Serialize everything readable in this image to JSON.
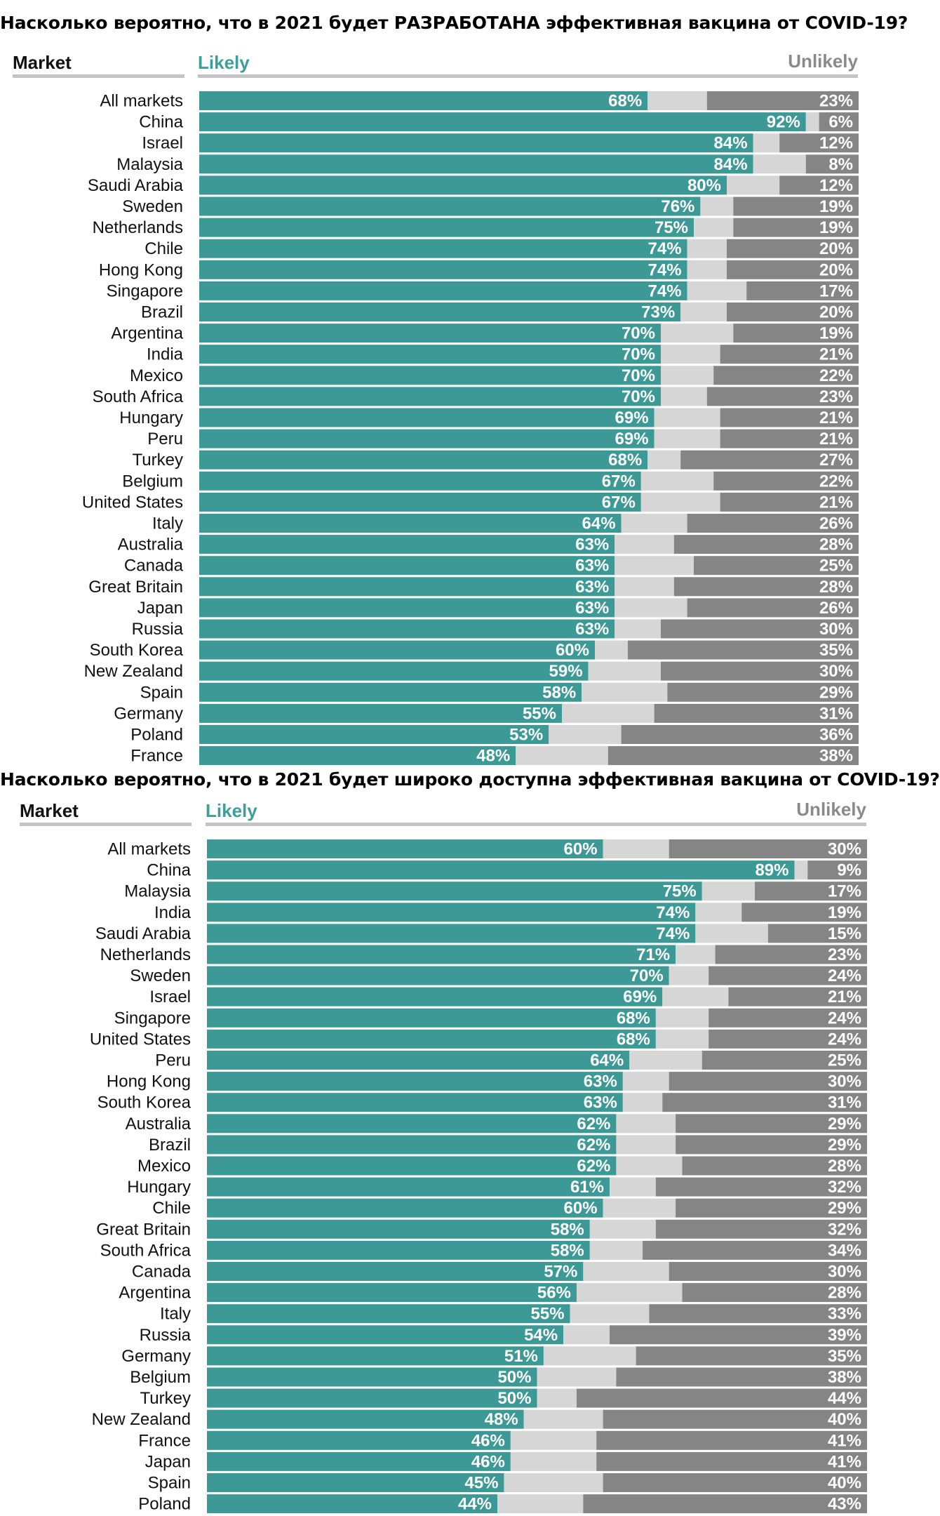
{
  "colors": {
    "likely": "#3d9995",
    "neutral": "#d6d6d6",
    "unlikely": "#858585",
    "likely_text": "#3f9e98",
    "unlikely_text": "#8a8a8a"
  },
  "chart_data": [
    {
      "type": "bar",
      "stacked": true,
      "orientation": "horizontal",
      "title": "Насколько вероятно, что в 2021 будет РАЗРАБОТАНА эффективная вакцина от COVID-19?",
      "category_header": "Market",
      "likely_header": "Likely",
      "unlikely_header": "Unlikely",
      "xlim": [
        0,
        100
      ],
      "categories": [
        "All markets",
        "China",
        "Israel",
        "Malaysia",
        "Saudi Arabia",
        "Sweden",
        "Netherlands",
        "Chile",
        "Hong Kong",
        "Singapore",
        "Brazil",
        "Argentina",
        "India",
        "Mexico",
        "South Africa",
        "Hungary",
        "Peru",
        "Turkey",
        "Belgium",
        "United States",
        "Italy",
        "Australia",
        "Canada",
        "Great Britain",
        "Japan",
        "Russia",
        "South Korea",
        "New Zealand",
        "Spain",
        "Germany",
        "Poland",
        "France"
      ],
      "series": [
        {
          "name": "Likely",
          "values": [
            68,
            92,
            84,
            84,
            80,
            76,
            75,
            74,
            74,
            74,
            73,
            70,
            70,
            70,
            70,
            69,
            69,
            68,
            67,
            67,
            64,
            63,
            63,
            63,
            63,
            63,
            60,
            59,
            58,
            55,
            53,
            48
          ]
        },
        {
          "values": [
            9,
            2,
            4,
            8,
            8,
            5,
            6,
            6,
            6,
            9,
            7,
            11,
            9,
            8,
            7,
            10,
            10,
            5,
            11,
            12,
            10,
            9,
            12,
            9,
            11,
            7,
            5,
            11,
            13,
            14,
            11,
            14
          ]
        },
        {
          "name": "Unlikely",
          "values": [
            23,
            6,
            12,
            8,
            12,
            19,
            19,
            20,
            20,
            17,
            20,
            19,
            21,
            22,
            23,
            21,
            21,
            27,
            22,
            21,
            26,
            28,
            25,
            28,
            26,
            30,
            35,
            30,
            29,
            31,
            36,
            38
          ]
        }
      ],
      "likely_labels": [
        "68%",
        "92%",
        "84%",
        "84%",
        "80%",
        "76%",
        "75%",
        "74%",
        "74%",
        "74%",
        "73%",
        "70%",
        "70%",
        "70%",
        "70%",
        "69%",
        "69%",
        "68%",
        "67%",
        "67%",
        "64%",
        "63%",
        "63%",
        "63%",
        "63%",
        "63%",
        "60%",
        "59%",
        "58%",
        "55%",
        "53%",
        "48%"
      ],
      "unlikely_labels": [
        "23%",
        "6%",
        "12%",
        "8%",
        "12%",
        "19%",
        "19%",
        "20%",
        "20%",
        "17%",
        "20%",
        "19%",
        "21%",
        "22%",
        "23%",
        "21%",
        "21%",
        "27%",
        "22%",
        "21%",
        "26%",
        "28%",
        "25%",
        "28%",
        "26%",
        "30%",
        "35%",
        "30%",
        "29%",
        "31%",
        "36%",
        "38%"
      ]
    },
    {
      "type": "bar",
      "stacked": true,
      "orientation": "horizontal",
      "title": "Насколько вероятно, что в 2021 будет широко доступна эффективная вакцина от COVID-19?",
      "category_header": "Market",
      "likely_header": "Likely",
      "unlikely_header": "Unlikely",
      "xlim": [
        0,
        100
      ],
      "categories": [
        "All markets",
        "China",
        "Malaysia",
        "India",
        "Saudi Arabia",
        "Netherlands",
        "Sweden",
        "Israel",
        "Singapore",
        "United States",
        "Peru",
        "Hong Kong",
        "South Korea",
        "Australia",
        "Brazil",
        "Mexico",
        "Hungary",
        "Chile",
        "Great Britain",
        "South Africa",
        "Canada",
        "Argentina",
        "Italy",
        "Russia",
        "Germany",
        "Belgium",
        "Turkey",
        "New Zealand",
        "France",
        "Japan",
        "Spain",
        "Poland"
      ],
      "series": [
        {
          "name": "Likely",
          "values": [
            60,
            89,
            75,
            74,
            74,
            71,
            70,
            69,
            68,
            68,
            64,
            63,
            63,
            62,
            62,
            62,
            61,
            60,
            58,
            58,
            57,
            56,
            55,
            54,
            51,
            50,
            50,
            48,
            46,
            46,
            45,
            44
          ]
        },
        {
          "values": [
            10,
            2,
            8,
            7,
            11,
            6,
            6,
            10,
            8,
            8,
            11,
            7,
            6,
            9,
            9,
            10,
            7,
            11,
            10,
            8,
            13,
            16,
            12,
            7,
            14,
            12,
            6,
            12,
            13,
            13,
            15,
            13
          ]
        },
        {
          "name": "Unlikely",
          "values": [
            30,
            9,
            17,
            19,
            15,
            23,
            24,
            21,
            24,
            24,
            25,
            30,
            31,
            29,
            29,
            28,
            32,
            29,
            32,
            34,
            30,
            28,
            33,
            39,
            35,
            38,
            44,
            40,
            41,
            41,
            40,
            43
          ]
        }
      ],
      "likely_labels": [
        "60%",
        "89%",
        "75%",
        "74%",
        "74%",
        "71%",
        "70%",
        "69%",
        "68%",
        "68%",
        "64%",
        "63%",
        "63%",
        "62%",
        "62%",
        "62%",
        "61%",
        "60%",
        "58%",
        "58%",
        "57%",
        "56%",
        "55%",
        "54%",
        "51%",
        "50%",
        "50%",
        "48%",
        "46%",
        "46%",
        "45%",
        "44%"
      ],
      "unlikely_labels": [
        "30%",
        "9%",
        "17%",
        "19%",
        "15%",
        "23%",
        "24%",
        "21%",
        "24%",
        "24%",
        "25%",
        "30%",
        "31%",
        "29%",
        "29%",
        "28%",
        "32%",
        "29%",
        "32%",
        "34%",
        "30%",
        "28%",
        "33%",
        "39%",
        "35%",
        "38%",
        "44%",
        "40%",
        "41%",
        "41%",
        "40%",
        "43%"
      ]
    }
  ]
}
